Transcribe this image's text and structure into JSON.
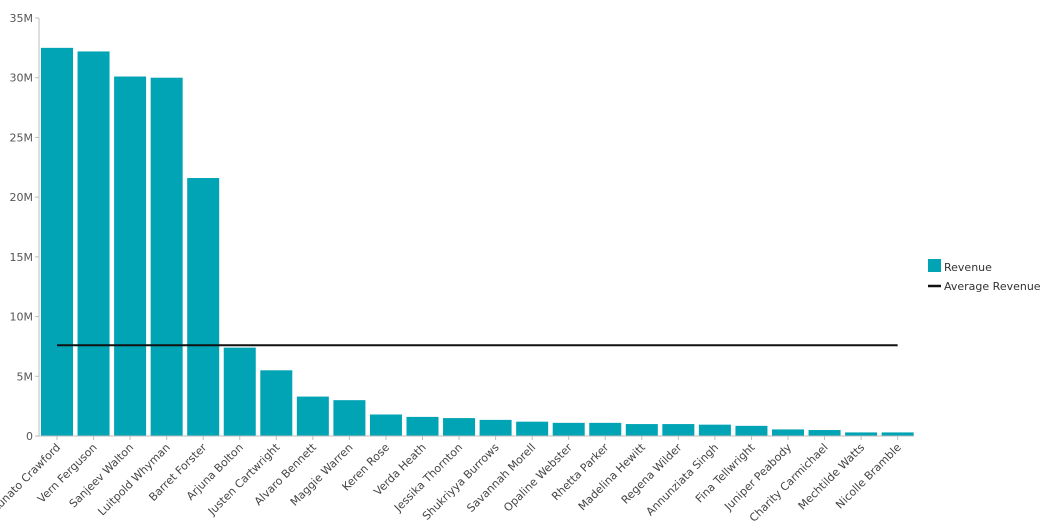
{
  "chart_data": {
    "type": "bar",
    "title": "",
    "xlabel": "",
    "ylabel": "",
    "ylim": [
      0,
      35000000
    ],
    "yticks": [
      {
        "value": 0,
        "label": "0"
      },
      {
        "value": 5000000,
        "label": "5M"
      },
      {
        "value": 10000000,
        "label": "10M"
      },
      {
        "value": 15000000,
        "label": "15M"
      },
      {
        "value": 20000000,
        "label": "20M"
      },
      {
        "value": 25000000,
        "label": "25M"
      },
      {
        "value": 30000000,
        "label": "30M"
      },
      {
        "value": 35000000,
        "label": "35M"
      }
    ],
    "categories": [
      "Kunato Crawford",
      "Vern Ferguson",
      "Sanjeev Walton",
      "Luitpold Whyman",
      "Barret Forster",
      "Arjuna Bolton",
      "Justen Cartwright",
      "Alvaro Bennett",
      "Maggie Warren",
      "Keren Rose",
      "Verda Heath",
      "Jessika Thornton",
      "Shukriyya Burrows",
      "Savannah Morell",
      "Opaline Webster",
      "Rhetta Parker",
      "Madelina Hewitt",
      "Regena Wilder",
      "Annunziata Singh",
      "Fina Tellwright",
      "Juniper Peabody",
      "Charity Carmichael",
      "Mechtilde Watts",
      "Nicolle Bramble"
    ],
    "series": [
      {
        "name": "Revenue",
        "type": "bar",
        "color": "#00A4B4",
        "values": [
          32500000,
          32200000,
          30100000,
          30000000,
          21600000,
          7400000,
          5500000,
          3300000,
          3000000,
          1800000,
          1600000,
          1500000,
          1350000,
          1200000,
          1100000,
          1100000,
          1000000,
          1000000,
          950000,
          850000,
          550000,
          500000,
          300000,
          300000
        ]
      },
      {
        "name": "Average Revenue",
        "type": "line",
        "color": "#111111",
        "value": 7600000
      }
    ],
    "legend": "right",
    "grid": false
  }
}
